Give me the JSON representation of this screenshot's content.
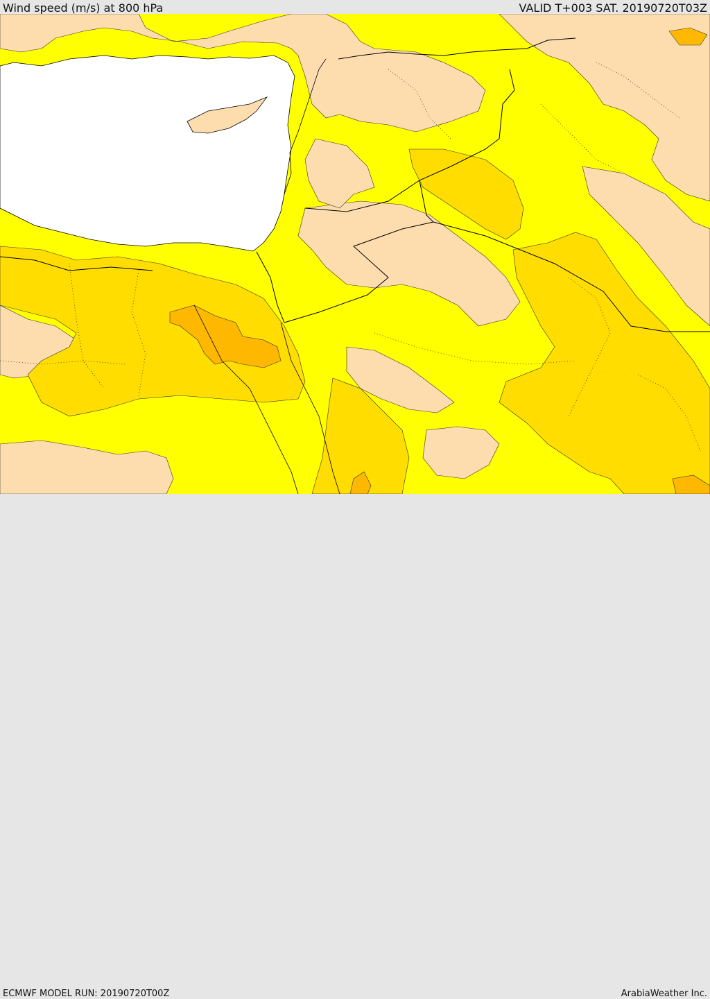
{
  "header": {
    "title": "Wind speed (m/s) at 800 hPa",
    "valid": "VALID T+003 SAT. 20190720T03Z"
  },
  "footer": {
    "model_run": "ECMWF MODEL RUN: 20190720T00Z",
    "credit": "ArabiaWeather Inc."
  },
  "map": {
    "field": "wind speed",
    "level": "800 hPa",
    "colors": {
      "sea": "#ffffff",
      "band_low": "#fddcae",
      "band_mid": "#ffff00",
      "band_high": "#ffdd00",
      "band_higher": "#ffb800",
      "band_max": "#ff9a00",
      "border": "#000000"
    }
  }
}
